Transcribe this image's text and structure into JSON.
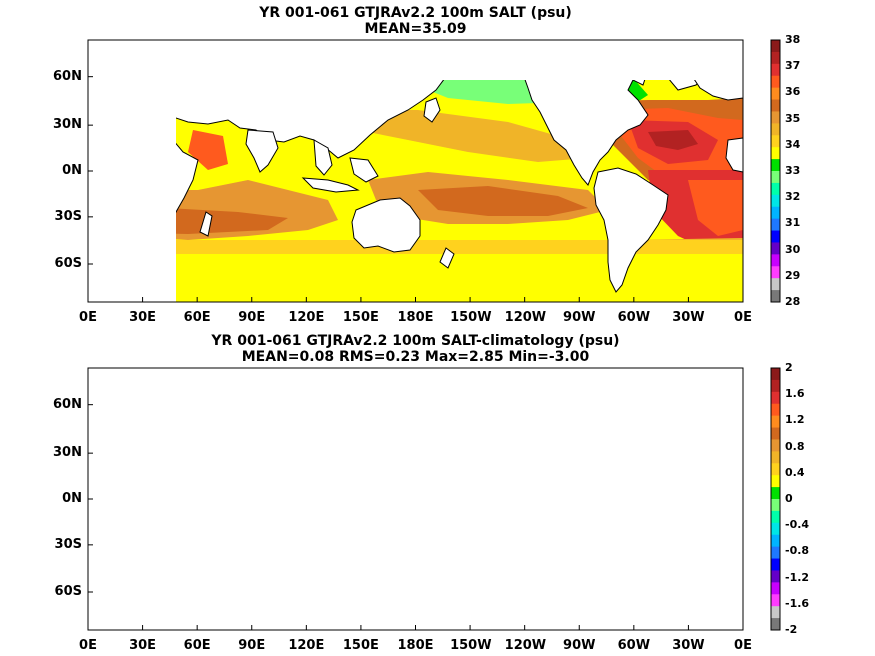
{
  "panels": [
    {
      "title": "YR 001-061 GTJRAv2.2 100m SALT (psu)",
      "subtitle": "MEAN=35.09",
      "colorbar": {
        "labels": [
          "38",
          "37",
          "36",
          "35",
          "34",
          "33",
          "32",
          "31",
          "30",
          "29",
          "28"
        ],
        "colors": [
          "#8b1a1a",
          "#b22222",
          "#e03030",
          "#ff5a1e",
          "#ff8c1e",
          "#d2691e",
          "#e69632",
          "#f0b428",
          "#ffd21e",
          "#ffff00",
          "#00e100",
          "#78ff78",
          "#00ffaa",
          "#00e6e6",
          "#00b4ff",
          "#1e78ff",
          "#0000ff",
          "#6400c8",
          "#c800ff",
          "#ff3cff",
          "#c8c8c8",
          "#787878"
        ]
      }
    },
    {
      "title": "YR 001-061 GTJRAv2.2 100m SALT-climatology (psu)",
      "subtitle": "MEAN=0.08   RMS=0.23   Max=2.85   Min=-3.00",
      "colorbar": {
        "labels": [
          "2",
          "1.6",
          "1.2",
          "0.8",
          "0.4",
          "0",
          "-0.4",
          "-0.8",
          "-1.2",
          "-1.6",
          "-2"
        ],
        "colors": [
          "#8b1a1a",
          "#b22222",
          "#e03030",
          "#ff5a1e",
          "#ff8c1e",
          "#d2691e",
          "#e69632",
          "#f0b428",
          "#ffd21e",
          "#ffff00",
          "#00e100",
          "#78ff78",
          "#00ffaa",
          "#00e6e6",
          "#00b4ff",
          "#1e78ff",
          "#0000ff",
          "#6400c8",
          "#c800ff",
          "#ff3cff",
          "#c8c8c8",
          "#787878"
        ]
      }
    }
  ],
  "lat_labels": [
    "60N",
    "30N",
    "0N",
    "30S",
    "60S"
  ],
  "lon_labels": [
    "0E",
    "30E",
    "60E",
    "90E",
    "120E",
    "150E",
    "180E",
    "150W",
    "120W",
    "90W",
    "60W",
    "30W",
    "0E"
  ],
  "land_color": "#ffffff"
}
